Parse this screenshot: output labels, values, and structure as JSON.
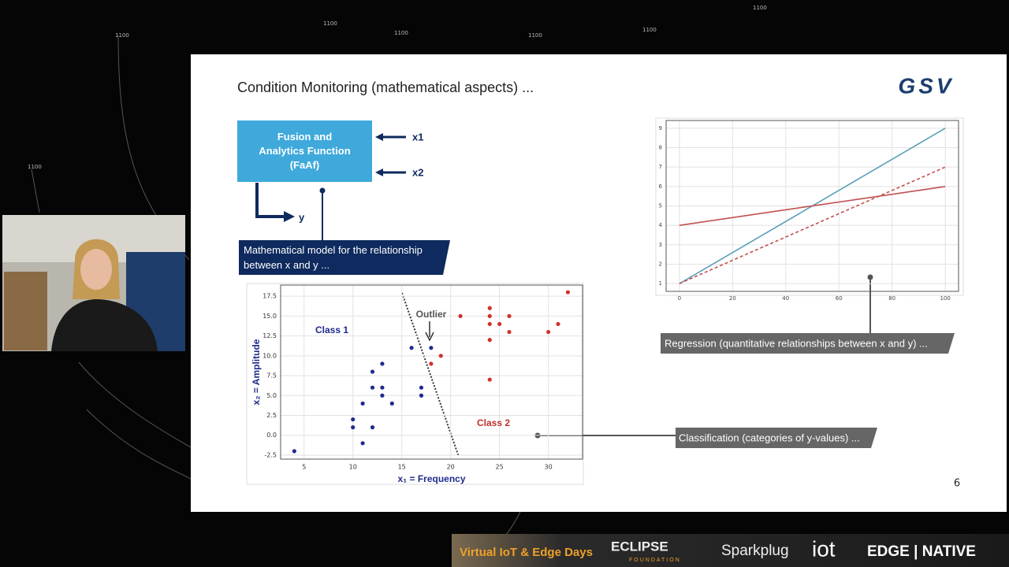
{
  "background_label": "1100",
  "slide": {
    "title": "Condition Monitoring (mathematical aspects) ...",
    "logo": "GSV",
    "page_number": "6"
  },
  "diagram": {
    "box": "Fusion and Analytics Function (FaAf)",
    "inputs": [
      "x1",
      "x2"
    ],
    "output": "y",
    "callout": "Mathematical model for the relationship between x and y ..."
  },
  "classification": {
    "chart_data": {
      "type": "scatter",
      "xlabel": "x₁ = Frequency",
      "ylabel": "x₂ = Amplitude",
      "xlim": [
        2.6,
        33.5
      ],
      "ylim": [
        -3.0,
        18.9
      ],
      "xticks": [
        5,
        10,
        15,
        20,
        25,
        30
      ],
      "yticks": [
        -2.5,
        {
          "value": 0,
          "label": "0.0"
        },
        2.5,
        {
          "value": 5,
          "label": "5.0"
        },
        7.5,
        {
          "value": 10,
          "label": "10.0"
        },
        12.5,
        {
          "value": 15,
          "label": "15.0"
        },
        17.5
      ],
      "grid": true,
      "annotations": {
        "class1": "Class 1",
        "class2": "Class 2",
        "outlier": "Outlier"
      },
      "series": [
        {
          "name": "Class 1",
          "color": "#1f2b8c",
          "x": [
            4,
            10,
            10,
            11,
            11,
            12,
            12,
            12,
            13,
            13,
            13,
            14,
            16,
            17,
            17,
            18
          ],
          "values": [
            -2,
            2,
            1,
            -1,
            4,
            1,
            6,
            8,
            9,
            6,
            5,
            4,
            11,
            6,
            5,
            11
          ]
        },
        {
          "name": "Class 2",
          "color": "#d0312d",
          "x": [
            18,
            19,
            21,
            24,
            24,
            24,
            24,
            24,
            25,
            26,
            26,
            30,
            31,
            32
          ],
          "values": [
            9,
            10,
            15,
            16,
            15,
            14,
            12,
            7,
            14,
            15,
            13,
            13,
            14,
            18
          ]
        }
      ]
    },
    "callout": "Classification (categories of y-values) ..."
  },
  "regression": {
    "chart_data": {
      "type": "line",
      "x": [
        0,
        100
      ],
      "xlim": [
        -5,
        105
      ],
      "ylim": [
        0.6,
        9.4
      ],
      "xticks": [
        0,
        20,
        40,
        60,
        80,
        100
      ],
      "yticks": [
        1,
        2,
        3,
        4,
        5,
        6,
        7,
        8,
        9
      ],
      "grid": true,
      "series": [
        {
          "color": "#5b9fb8",
          "style": "solid",
          "values": [
            1,
            9
          ]
        },
        {
          "color": "#c0504d",
          "style": "solid",
          "values": [
            4,
            6
          ]
        },
        {
          "color": "#c0504d",
          "style": "dashed",
          "values": [
            1,
            7
          ]
        }
      ]
    },
    "callout": "Regression (quantitative relationships between x and y) ..."
  },
  "footer": {
    "event": "Virtual IoT & Edge Days",
    "eclipse": "ECLIPSE",
    "foundation": "FOUNDATION",
    "sparkplug": "Sparkplug",
    "iot": "iot",
    "edge_native": "EDGE | NATIVE"
  }
}
